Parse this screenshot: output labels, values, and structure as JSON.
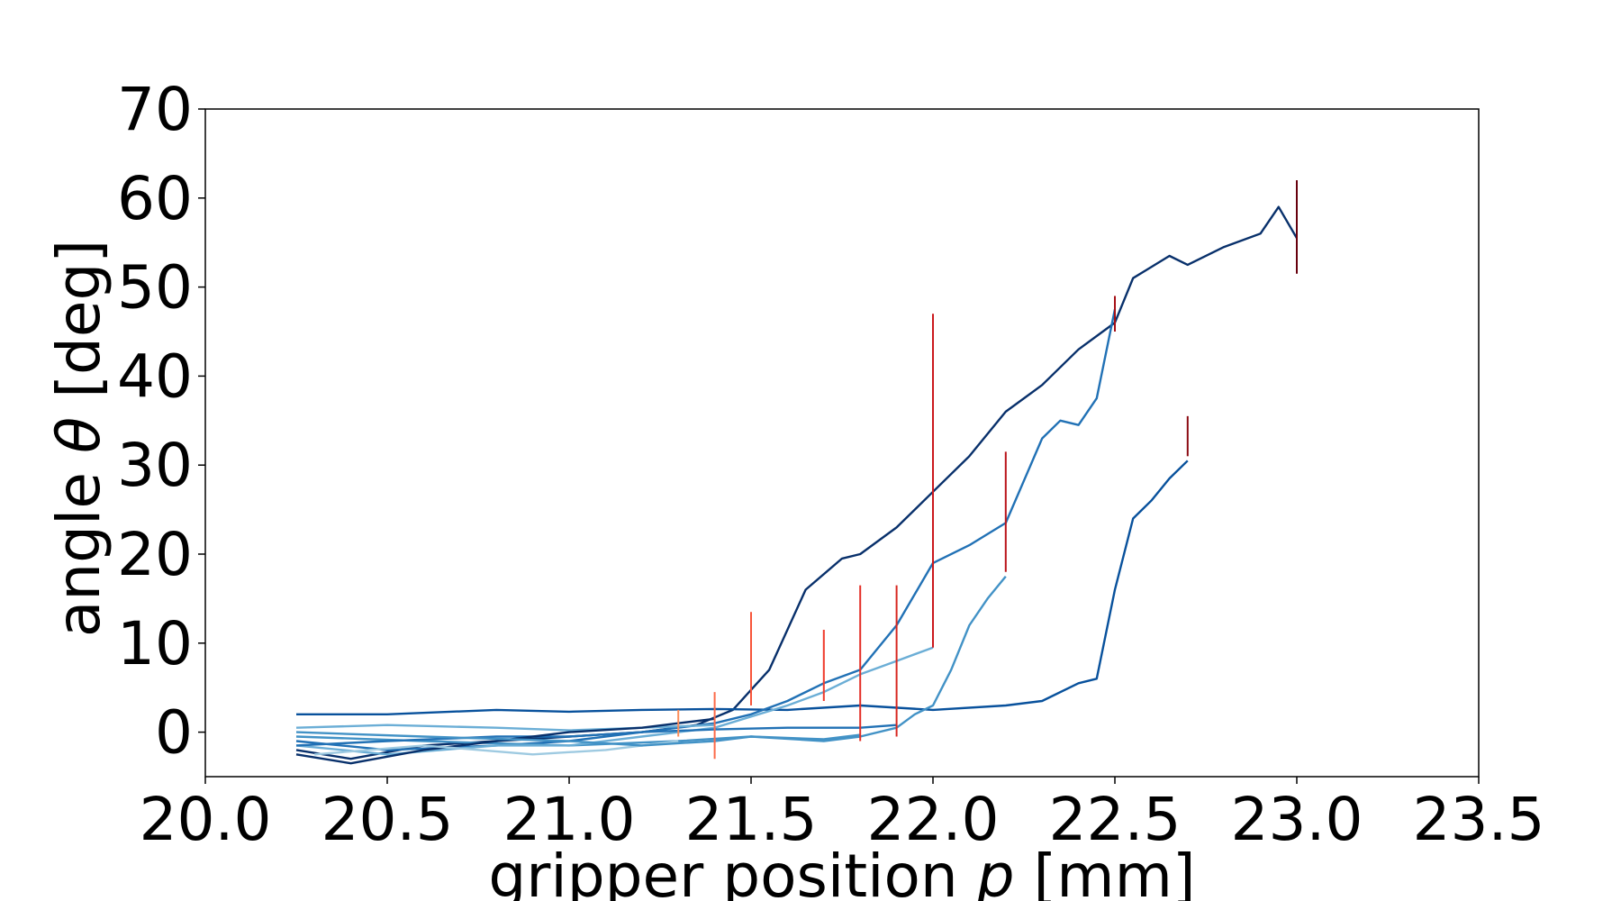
{
  "chart_data": {
    "type": "line",
    "xlabel": {
      "prefix": "gripper position ",
      "symbol": "p",
      "suffix": " [mm]"
    },
    "ylabel": {
      "prefix": "angle ",
      "symbol": "θ",
      "suffix": " [deg]"
    },
    "xlim": [
      20.0,
      23.5
    ],
    "ylim": [
      -5,
      70
    ],
    "xticks": [
      20.0,
      20.5,
      21.0,
      21.5,
      22.0,
      22.5,
      23.0,
      23.5
    ],
    "xtick_labels": [
      "20.0",
      "20.5",
      "21.0",
      "21.5",
      "22.0",
      "22.5",
      "23.0",
      "23.5"
    ],
    "yticks": [
      0,
      10,
      20,
      30,
      40,
      50,
      60,
      70
    ],
    "ytick_labels": [
      "0",
      "10",
      "20",
      "30",
      "40",
      "50",
      "60",
      "70"
    ],
    "grid": false,
    "legend": false,
    "series": [
      {
        "color": "#08306b",
        "points": [
          [
            20.25,
            -2.0
          ],
          [
            20.4,
            -3.0
          ],
          [
            20.6,
            -1.5
          ],
          [
            20.8,
            -1.0
          ],
          [
            21.0,
            -0.5
          ],
          [
            21.2,
            0.0
          ],
          [
            21.35,
            0.8
          ],
          [
            21.45,
            2.5
          ],
          [
            21.55,
            7.0
          ],
          [
            21.65,
            16.0
          ],
          [
            21.75,
            19.5
          ],
          [
            21.8,
            20.0
          ],
          [
            21.9,
            23.0
          ],
          [
            22.0,
            27.0
          ],
          [
            22.1,
            31.0
          ],
          [
            22.2,
            36.0
          ],
          [
            22.3,
            39.0
          ],
          [
            22.4,
            43.0
          ],
          [
            22.5,
            46.0
          ],
          [
            22.55,
            51.0
          ],
          [
            22.65,
            53.5
          ],
          [
            22.7,
            52.5
          ],
          [
            22.8,
            54.5
          ],
          [
            22.9,
            56.0
          ],
          [
            22.95,
            59.0
          ],
          [
            23.0,
            55.5
          ]
        ]
      },
      {
        "color": "#08519c",
        "points": [
          [
            20.25,
            2.0
          ],
          [
            20.5,
            2.0
          ],
          [
            20.8,
            2.5
          ],
          [
            21.0,
            2.3
          ],
          [
            21.2,
            2.5
          ],
          [
            21.4,
            2.6
          ],
          [
            21.6,
            2.5
          ],
          [
            21.8,
            3.0
          ],
          [
            22.0,
            2.5
          ],
          [
            22.2,
            3.0
          ],
          [
            22.3,
            3.5
          ],
          [
            22.4,
            5.5
          ],
          [
            22.45,
            6.0
          ],
          [
            22.5,
            16.0
          ],
          [
            22.55,
            24.0
          ],
          [
            22.6,
            26.0
          ],
          [
            22.65,
            28.5
          ],
          [
            22.7,
            30.5
          ]
        ]
      },
      {
        "color": "#2171b5",
        "points": [
          [
            20.25,
            -1.0
          ],
          [
            20.5,
            -2.0
          ],
          [
            20.8,
            -1.5
          ],
          [
            21.0,
            -1.0
          ],
          [
            21.2,
            0.0
          ],
          [
            21.4,
            1.0
          ],
          [
            21.5,
            2.0
          ],
          [
            21.6,
            3.5
          ],
          [
            21.7,
            5.5
          ],
          [
            21.8,
            7.0
          ],
          [
            21.9,
            12.0
          ],
          [
            22.0,
            19.0
          ],
          [
            22.1,
            21.0
          ],
          [
            22.2,
            23.5
          ],
          [
            22.3,
            33.0
          ],
          [
            22.35,
            35.0
          ],
          [
            22.4,
            34.5
          ],
          [
            22.45,
            37.5
          ],
          [
            22.5,
            47.5
          ]
        ]
      },
      {
        "color": "#4292c6",
        "points": [
          [
            20.25,
            -0.5
          ],
          [
            20.6,
            -1.0
          ],
          [
            21.0,
            -1.5
          ],
          [
            21.3,
            -1.0
          ],
          [
            21.5,
            -0.5
          ],
          [
            21.7,
            -1.0
          ],
          [
            21.8,
            -0.5
          ],
          [
            21.9,
            0.5
          ],
          [
            21.95,
            2.0
          ],
          [
            22.0,
            3.0
          ],
          [
            22.05,
            7.0
          ],
          [
            22.1,
            12.0
          ],
          [
            22.15,
            15.0
          ],
          [
            22.2,
            17.5
          ]
        ]
      },
      {
        "color": "#6baed6",
        "points": [
          [
            20.25,
            -1.5
          ],
          [
            20.5,
            -2.5
          ],
          [
            20.8,
            -1.5
          ],
          [
            21.0,
            -1.5
          ],
          [
            21.2,
            -0.5
          ],
          [
            21.4,
            0.5
          ],
          [
            21.6,
            3.0
          ],
          [
            21.7,
            4.5
          ],
          [
            21.8,
            6.5
          ],
          [
            21.9,
            8.0
          ],
          [
            22.0,
            9.5
          ]
        ]
      },
      {
        "color": "#2171b5",
        "points": [
          [
            20.25,
            -1.5
          ],
          [
            20.5,
            -1.0
          ],
          [
            20.8,
            -0.5
          ],
          [
            21.0,
            -0.5
          ],
          [
            21.2,
            0.0
          ],
          [
            21.4,
            0.3
          ],
          [
            21.6,
            0.5
          ],
          [
            21.8,
            0.5
          ],
          [
            21.9,
            0.8
          ]
        ]
      },
      {
        "color": "#6baed6",
        "points": [
          [
            20.25,
            0.5
          ],
          [
            20.5,
            0.8
          ],
          [
            20.8,
            0.5
          ],
          [
            21.0,
            0.2
          ],
          [
            21.2,
            0.5
          ],
          [
            21.4,
            0.8
          ]
        ]
      },
      {
        "color": "#08306b",
        "points": [
          [
            20.25,
            -2.5
          ],
          [
            20.4,
            -3.5
          ],
          [
            20.6,
            -2.0
          ],
          [
            20.8,
            -1.0
          ],
          [
            21.0,
            0.0
          ],
          [
            21.2,
            0.5
          ],
          [
            21.3,
            1.0
          ],
          [
            21.4,
            1.5
          ]
        ]
      },
      {
        "color": "#9ecae1",
        "points": [
          [
            20.3,
            -2.5
          ],
          [
            20.6,
            -1.5
          ],
          [
            20.9,
            -2.5
          ],
          [
            21.1,
            -2.0
          ],
          [
            21.3,
            -1.0
          ]
        ]
      },
      {
        "color": "#4292c6",
        "points": [
          [
            20.25,
            0.0
          ],
          [
            20.6,
            -0.5
          ],
          [
            21.0,
            -1.0
          ],
          [
            21.2,
            -1.5
          ],
          [
            21.4,
            -1.0
          ],
          [
            21.5,
            -0.5
          ],
          [
            21.7,
            -0.8
          ],
          [
            21.8,
            -0.3
          ]
        ]
      }
    ],
    "error_bars": [
      {
        "x": 21.3,
        "low": -0.5,
        "high": 2.5,
        "color": "#fc8d59"
      },
      {
        "x": 21.4,
        "low": -3.0,
        "high": 4.5,
        "color": "#fc6a4a"
      },
      {
        "x": 21.5,
        "low": 3.0,
        "high": 13.5,
        "color": "#f7553a"
      },
      {
        "x": 21.7,
        "low": 3.5,
        "high": 11.5,
        "color": "#ef3b2c"
      },
      {
        "x": 21.8,
        "low": -1.0,
        "high": 16.5,
        "color": "#e32f27"
      },
      {
        "x": 21.9,
        "low": -0.5,
        "high": 16.5,
        "color": "#d7261e"
      },
      {
        "x": 22.0,
        "low": 9.5,
        "high": 47.0,
        "color": "#cb181d"
      },
      {
        "x": 22.2,
        "low": 18.0,
        "high": 31.5,
        "color": "#b91319"
      },
      {
        "x": 22.5,
        "low": 45.0,
        "high": 49.0,
        "color": "#a50f15"
      },
      {
        "x": 22.7,
        "low": 31.0,
        "high": 35.5,
        "color": "#8b0a12"
      },
      {
        "x": 23.0,
        "low": 51.5,
        "high": 62.0,
        "color": "#67000d"
      }
    ]
  }
}
